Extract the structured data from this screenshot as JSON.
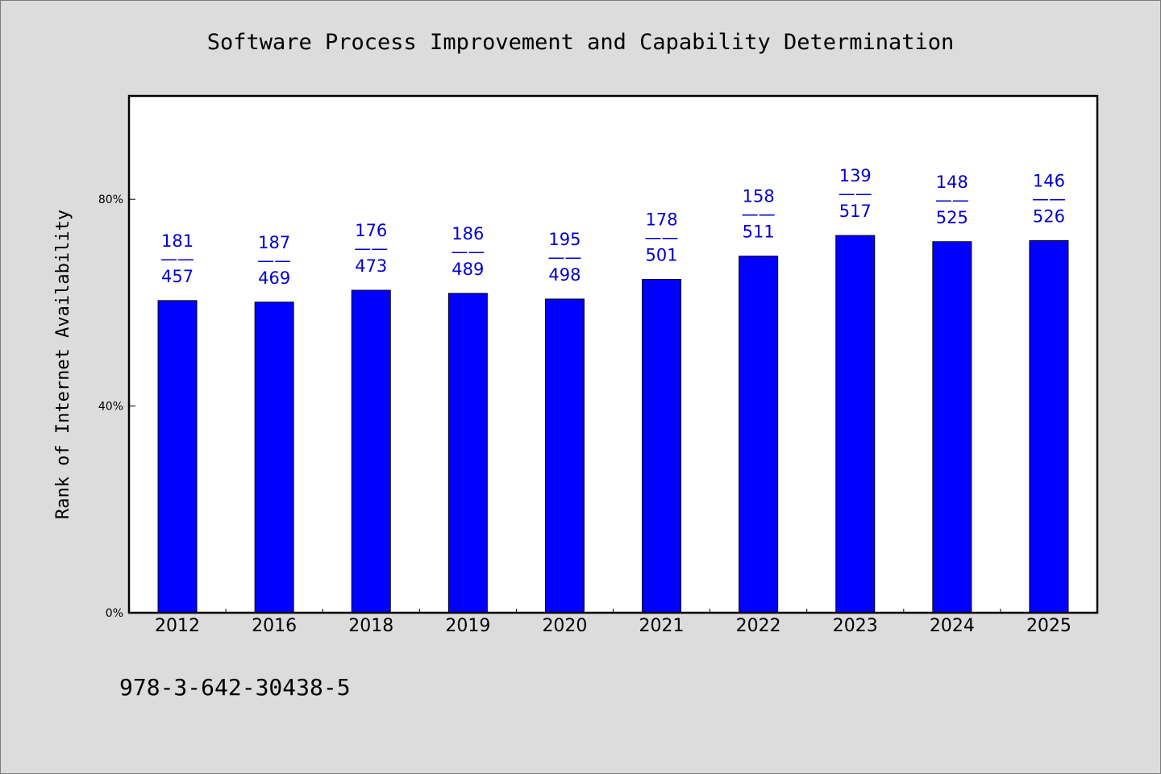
{
  "chart_data": {
    "type": "bar",
    "title": "Software Process Improvement and Capability Determination",
    "xlabel": "",
    "ylabel": "Rank of Internet Availability",
    "categories": [
      "2012",
      "2016",
      "2018",
      "2019",
      "2020",
      "2021",
      "2022",
      "2023",
      "2024",
      "2025"
    ],
    "values": [
      60.4,
      60.1,
      62.4,
      61.8,
      60.7,
      64.5,
      69.0,
      73.0,
      71.8,
      72.0
    ],
    "data_labels": [
      {
        "top": "181",
        "sep": "——",
        "bottom": "457"
      },
      {
        "top": "187",
        "sep": "——",
        "bottom": "469"
      },
      {
        "top": "176",
        "sep": "——",
        "bottom": "473"
      },
      {
        "top": "186",
        "sep": "——",
        "bottom": "489"
      },
      {
        "top": "195",
        "sep": "——",
        "bottom": "498"
      },
      {
        "top": "178",
        "sep": "——",
        "bottom": "501"
      },
      {
        "top": "158",
        "sep": "——",
        "bottom": "511"
      },
      {
        "top": "139",
        "sep": "——",
        "bottom": "517"
      },
      {
        "top": "148",
        "sep": "——",
        "bottom": "525"
      },
      {
        "top": "146",
        "sep": "——",
        "bottom": "526"
      }
    ],
    "ylim": [
      0,
      100
    ],
    "yticks": [
      0,
      40,
      80
    ],
    "ytick_labels": [
      "0%",
      "40%",
      "80%"
    ],
    "grid": false,
    "legend": "none",
    "bar_color": "#0000ff",
    "label_color": "#0000cc",
    "footnote": "978-3-642-30438-5"
  }
}
